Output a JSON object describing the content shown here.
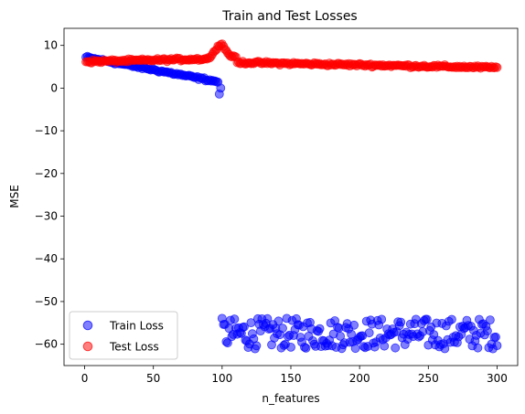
{
  "chart_data": {
    "type": "scatter",
    "title": "Train and Test Losses",
    "xlabel": "n_features",
    "ylabel": "MSE",
    "xlim": [
      -15,
      315
    ],
    "ylim": [
      -65,
      14
    ],
    "xticks": [
      0,
      50,
      100,
      150,
      200,
      250,
      300
    ],
    "yticks": [
      10,
      0,
      -10,
      -20,
      -30,
      -40,
      -50,
      -60
    ],
    "ytick_labels": [
      "10",
      "0",
      "−10",
      "−20",
      "−30",
      "−40",
      "−50",
      "−60"
    ],
    "grid": false,
    "legend_position": "lower-left",
    "series": [
      {
        "name": "Train Loss",
        "color": "#0000ff",
        "segments": [
          {
            "x_range": [
              1,
              97
            ],
            "y_start": 7.2,
            "y_end": 1.5,
            "jitter": 0.5
          },
          {
            "x_range": [
              98,
              99
            ],
            "y_values": [
              -1.4,
              0.0
            ]
          },
          {
            "x_range": [
              100,
              300
            ],
            "y_center": -57.5,
            "y_jitter": 3.6
          }
        ]
      },
      {
        "name": "Test Loss",
        "color": "#ff0000",
        "segments": [
          {
            "x_range": [
              1,
              85
            ],
            "y_start": 6.2,
            "y_end": 6.8,
            "jitter": 0.5
          },
          {
            "x_range": [
              86,
              110
            ],
            "y_peak": 10.3,
            "peak_x": 99,
            "shape": "bump"
          },
          {
            "x_range": [
              111,
              300
            ],
            "y_start": 6.0,
            "y_end": 4.8,
            "jitter": 0.5
          }
        ]
      }
    ]
  }
}
